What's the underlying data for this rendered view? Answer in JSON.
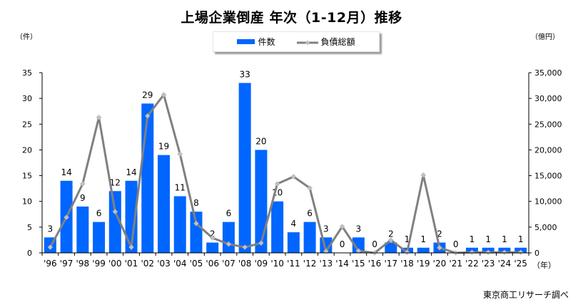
{
  "title": "上場企業倒産 年次（1-12月）推移",
  "legend": {
    "bar_label": "件数",
    "line_label": "負債総額"
  },
  "left_unit": "（件）",
  "right_unit": "（億円）",
  "x_unit": "（年）",
  "source": "東京商工リサーチ調べ",
  "colors": {
    "bar": "#0066FF",
    "line": "#808080",
    "marker": "#C0C0C0"
  },
  "chart_data": {
    "type": "bar+line",
    "title": "上場企業倒産 年次（1-12月）推移",
    "xlabel": "（年）",
    "ylabel": "（件）",
    "y2label": "（億円）",
    "categories": [
      "'96",
      "'97",
      "'98",
      "'99",
      "'00",
      "'01",
      "'02",
      "'03",
      "'04",
      "'05",
      "'06",
      "'07",
      "'08",
      "'09",
      "'10",
      "'11",
      "'12",
      "'13",
      "'14",
      "'15",
      "'16",
      "'17",
      "'18",
      "'19",
      "'20",
      "'21",
      "'22",
      "'23",
      "'24",
      "'25"
    ],
    "series": [
      {
        "name": "件数",
        "type": "bar",
        "axis": "left",
        "values": [
          3,
          14,
          9,
          6,
          12,
          14,
          29,
          19,
          11,
          8,
          2,
          6,
          33,
          20,
          10,
          4,
          6,
          3,
          0,
          3,
          0,
          2,
          1,
          1,
          2,
          0,
          1,
          1,
          1,
          1
        ]
      },
      {
        "name": "負債総額",
        "type": "line",
        "axis": "right",
        "values": [
          1100,
          6900,
          13400,
          26300,
          8000,
          1100,
          26600,
          30700,
          19200,
          5700,
          2900,
          1700,
          1100,
          1900,
          13400,
          14800,
          12600,
          300,
          5100,
          400,
          0,
          2500,
          100,
          15100,
          1000,
          0,
          100,
          100,
          100,
          100
        ]
      }
    ],
    "ylim": [
      0,
      35
    ],
    "yticks": [
      0,
      5,
      10,
      15,
      20,
      25,
      30,
      35
    ],
    "y2lim": [
      0,
      35000
    ],
    "y2ticks": [
      "0",
      "5,000",
      "10,000",
      "15,000",
      "20,000",
      "25,000",
      "30,000",
      "35,000"
    ],
    "grid": false,
    "legend_position": "top"
  }
}
